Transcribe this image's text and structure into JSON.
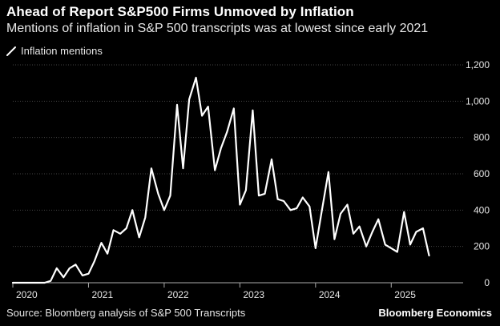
{
  "header": {
    "title": "Ahead of Report S&P500 Firms Unmoved by Inflation",
    "subtitle": "Mentions of inflation in S&P 500 transcripts was at lowest since early 2021"
  },
  "legend": {
    "label": "Inflation mentions",
    "icon": "line-swatch-icon"
  },
  "footer": {
    "source": "Source: Bloomberg analysis of S&P 500 Transcripts",
    "brand": "Bloomberg Economics"
  },
  "colors": {
    "background": "#000000",
    "line": "#ffffff",
    "grid": "#444444",
    "text": "#e6e6e6"
  },
  "chart_data": {
    "type": "line",
    "title": "Ahead of Report S&P500 Firms Unmoved by Inflation",
    "subtitle": "Mentions of inflation in S&P 500 transcripts was at lowest since early 2021",
    "xlabel": "",
    "ylabel": "",
    "xlim": [
      2020.0,
      2025.95
    ],
    "ylim": [
      0,
      1200
    ],
    "y_ticks": [
      0,
      200,
      400,
      600,
      800,
      1000,
      1200
    ],
    "y_tick_labels": [
      "0",
      "200",
      "400",
      "600",
      "800",
      "1,000",
      "1,200"
    ],
    "x_ticks": [
      2020,
      2021,
      2022,
      2023,
      2024,
      2025
    ],
    "x_tick_labels": [
      "2020",
      "2021",
      "2022",
      "2023",
      "2024",
      "2025"
    ],
    "grid": "horizontal",
    "legend_position": "top-left",
    "series": [
      {
        "name": "Inflation mentions",
        "x": [
          2020.0,
          2020.08,
          2020.17,
          2020.25,
          2020.33,
          2020.42,
          2020.5,
          2020.58,
          2020.67,
          2020.75,
          2020.83,
          2020.92,
          2021.0,
          2021.08,
          2021.17,
          2021.25,
          2021.33,
          2021.42,
          2021.5,
          2021.58,
          2021.67,
          2021.75,
          2021.83,
          2021.92,
          2022.0,
          2022.08,
          2022.17,
          2022.25,
          2022.33,
          2022.42,
          2022.5,
          2022.58,
          2022.67,
          2022.75,
          2022.83,
          2022.92,
          2023.0,
          2023.08,
          2023.17,
          2023.25,
          2023.33,
          2023.42,
          2023.5,
          2023.58,
          2023.67,
          2023.75,
          2023.83,
          2023.92,
          2024.0,
          2024.08,
          2024.17,
          2024.25,
          2024.33,
          2024.42,
          2024.5,
          2024.58,
          2024.67,
          2024.75,
          2024.83,
          2024.92,
          2025.0,
          2025.08,
          2025.17,
          2025.25,
          2025.33,
          2025.42,
          2025.5
        ],
        "y": [
          0,
          0,
          0,
          0,
          0,
          0,
          10,
          80,
          30,
          80,
          100,
          40,
          50,
          120,
          220,
          160,
          290,
          270,
          300,
          400,
          250,
          360,
          630,
          490,
          400,
          480,
          980,
          630,
          1010,
          1130,
          920,
          970,
          620,
          740,
          830,
          960,
          430,
          510,
          950,
          480,
          490,
          680,
          460,
          450,
          400,
          410,
          470,
          420,
          190,
          390,
          610,
          240,
          380,
          430,
          270,
          310,
          200,
          280,
          350,
          210,
          190,
          170,
          390,
          210,
          280,
          300,
          150
        ]
      }
    ]
  }
}
